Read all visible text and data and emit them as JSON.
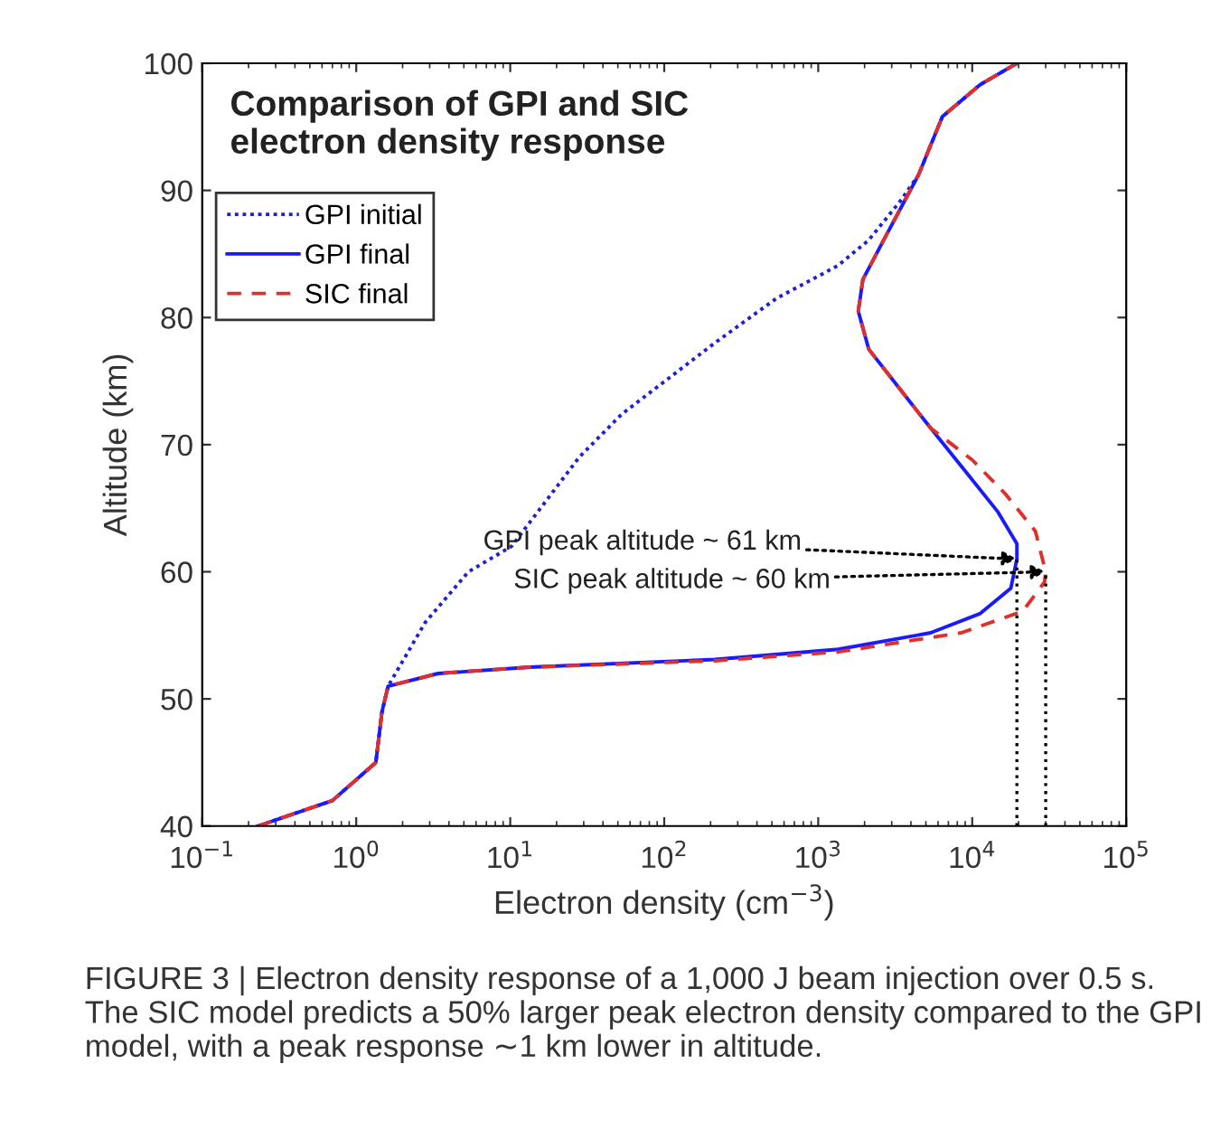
{
  "chart_data": {
    "type": "line",
    "title": "Comparison of GPI and SIC\nelectron density response",
    "xlabel": "Electron density (cm$^{−3}$)",
    "ylabel": "Altitude (km)",
    "log": "x",
    "xlim": [
      0.1,
      100000
    ],
    "ylim": [
      40,
      100
    ],
    "xticks": [
      {
        "value": 0.1,
        "label": "10$^{−1}$"
      },
      {
        "value": 1,
        "label": "10$^{0}$"
      },
      {
        "value": 10,
        "label": "10$^{1}$"
      },
      {
        "value": 100,
        "label": "10$^{2}$"
      },
      {
        "value": 1000,
        "label": "10$^{3}$"
      },
      {
        "value": 10000,
        "label": "10$^{4}$"
      },
      {
        "value": 100000,
        "label": "10$^{5}$"
      }
    ],
    "yticks": [
      40,
      50,
      60,
      70,
      80,
      90,
      100
    ],
    "legend": "top left",
    "grid": false,
    "series": [
      {
        "name": "GPI initial",
        "color": "#2020d0",
        "line_style": "dotted",
        "x": [
          0.23,
          0.7,
          1.34,
          1.47,
          1.61,
          2.8,
          5.35,
          10.2,
          28,
          53,
          213,
          535,
          1350,
          2130,
          3380,
          4470,
          6400,
          11200,
          19500
        ],
        "values": [
          40,
          42,
          45,
          49,
          51,
          56,
          60,
          62,
          69,
          72.4,
          78,
          81.5,
          84.1,
          86.1,
          89.1,
          91.2,
          95.8,
          98.3,
          100
        ]
      },
      {
        "name": "GPI final",
        "color": "#1a1aff",
        "line_style": "solid",
        "x": [
          0.23,
          0.7,
          1.34,
          1.47,
          1.61,
          3.4,
          13.4,
          213,
          1350,
          5370,
          11200,
          17800,
          19500,
          19500,
          14700,
          8500,
          5370,
          3380,
          2130,
          1820,
          1950,
          2800,
          4470,
          6400,
          11200,
          19500
        ],
        "values": [
          40,
          42,
          45,
          49,
          51,
          52,
          52.5,
          53.1,
          53.9,
          55.2,
          56.7,
          58.7,
          61,
          62.2,
          64.7,
          68.3,
          71.3,
          74.4,
          77.5,
          80.5,
          83,
          86.6,
          91.2,
          95.8,
          98.3,
          100
        ]
      },
      {
        "name": "SIC final",
        "color": "#e0302a",
        "line_style": "dashed",
        "x": [
          0.23,
          0.7,
          1.34,
          1.47,
          1.61,
          3.4,
          13.4,
          213,
          1350,
          8500,
          21300,
          29500,
          30000,
          25700,
          16200,
          10000,
          5370,
          3380,
          2130,
          1820,
          1950,
          2800,
          4470,
          6400,
          11200,
          19500
        ],
        "values": [
          40,
          42,
          45,
          49,
          51,
          52,
          52.5,
          53,
          53.7,
          55.2,
          56.9,
          59.2,
          60,
          63.2,
          66.2,
          68.8,
          71.3,
          74.4,
          77.5,
          80.5,
          83,
          86.6,
          91.2,
          95.8,
          98.3,
          100
        ]
      }
    ],
    "annotations": [
      {
        "text": "GPI peak altitude ~ 61 km",
        "x": 19500,
        "y": 61
      },
      {
        "text": "SIC peak altitude ~ 60 km",
        "x": 30000,
        "y": 60
      },
      "FIGURE 3 | Electron density response of a 1,000 J beam injection over 0.5 s. The SIC model predicts a 50% larger peak electron density compared to the GPI model, with a peak response ∼1 km lower in altitude."
    ]
  }
}
